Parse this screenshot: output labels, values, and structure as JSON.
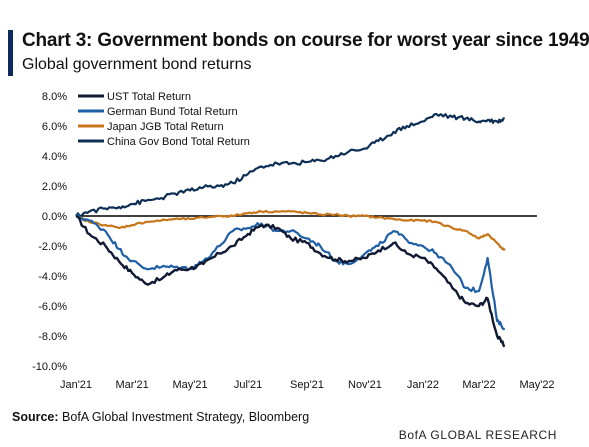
{
  "header": {
    "title": "Chart 3: Government bonds on course for worst year since 1949",
    "subtitle": "Global government bond returns"
  },
  "footer": {
    "source_label": "Source:",
    "source_text": "BofA Global Investment Strategy, Bloomberg",
    "credit": "BofA GLOBAL RESEARCH"
  },
  "colors": {
    "ust": "#111a33",
    "bund": "#1f5fa6",
    "jgb": "#c8761a",
    "china": "#0e2f55",
    "zero_line": "#000000",
    "axis_text": "#111111"
  },
  "chart_data": {
    "type": "line",
    "title": "",
    "xlabel": "",
    "ylabel": "",
    "x_ticks": [
      "Jan'21",
      "Mar'21",
      "May'21",
      "Jul'21",
      "Sep'21",
      "Nov'21",
      "Jan'22",
      "Mar'22",
      "May'22"
    ],
    "y_ticks": [
      "8.0%",
      "6.0%",
      "4.0%",
      "2.0%",
      "0.0%",
      "-2.0%",
      "-4.0%",
      "-6.0%",
      "-8.0%",
      "-10.0%"
    ],
    "ylim": [
      -10,
      8
    ],
    "xlim": [
      "2021-01-01",
      "2022-05-01"
    ],
    "legend_position": "top-left",
    "x": [
      "2021-01-01",
      "2021-01-15",
      "2021-02-01",
      "2021-02-15",
      "2021-03-01",
      "2021-03-15",
      "2021-04-01",
      "2021-04-15",
      "2021-05-01",
      "2021-05-15",
      "2021-06-01",
      "2021-06-15",
      "2021-07-01",
      "2021-07-15",
      "2021-08-01",
      "2021-08-15",
      "2021-09-01",
      "2021-09-15",
      "2021-10-01",
      "2021-10-15",
      "2021-11-01",
      "2021-11-15",
      "2021-12-01",
      "2021-12-15",
      "2022-01-01",
      "2022-01-15",
      "2022-02-01",
      "2022-02-15",
      "2022-03-01",
      "2022-03-10",
      "2022-03-20",
      "2022-03-28"
    ],
    "series": [
      {
        "name": "UST Total Return",
        "color_key": "ust",
        "values": [
          0.0,
          -1.2,
          -2.0,
          -3.0,
          -3.8,
          -4.5,
          -4.2,
          -3.6,
          -3.5,
          -3.2,
          -2.5,
          -2.0,
          -1.2,
          -0.6,
          -0.8,
          -1.5,
          -1.8,
          -2.5,
          -2.9,
          -3.0,
          -2.8,
          -2.3,
          -1.8,
          -2.5,
          -2.8,
          -3.5,
          -4.8,
          -5.8,
          -6.0,
          -5.5,
          -8.0,
          -8.7
        ]
      },
      {
        "name": "German Bund Total Return",
        "color_key": "bund",
        "values": [
          0.0,
          -0.3,
          -1.0,
          -2.2,
          -3.0,
          -3.5,
          -3.4,
          -3.4,
          -3.5,
          -3.0,
          -2.0,
          -1.0,
          -0.8,
          -0.5,
          -1.0,
          -1.0,
          -1.5,
          -2.0,
          -3.0,
          -3.2,
          -2.5,
          -2.0,
          -1.0,
          -1.6,
          -2.0,
          -2.5,
          -3.5,
          -4.8,
          -5.0,
          -2.8,
          -7.0,
          -7.5
        ]
      },
      {
        "name": "Japan JGB Total Return",
        "color_key": "jgb",
        "values": [
          0.0,
          -0.4,
          -0.6,
          -0.8,
          -0.6,
          -0.4,
          -0.3,
          -0.2,
          -0.2,
          -0.1,
          0.0,
          0.0,
          0.2,
          0.3,
          0.3,
          0.3,
          0.2,
          0.1,
          0.1,
          0.0,
          0.0,
          -0.1,
          -0.2,
          -0.3,
          -0.3,
          -0.4,
          -0.8,
          -1.0,
          -1.5,
          -1.2,
          -1.8,
          -2.3
        ]
      },
      {
        "name": "China Gov Bond Total Return",
        "color_key": "china",
        "values": [
          0.0,
          0.3,
          0.5,
          0.6,
          0.8,
          1.0,
          1.2,
          1.5,
          1.7,
          1.9,
          2.0,
          2.2,
          2.8,
          3.3,
          3.5,
          3.5,
          3.6,
          3.7,
          4.0,
          4.3,
          4.5,
          5.0,
          5.6,
          6.0,
          6.3,
          6.8,
          6.6,
          6.5,
          6.3,
          6.4,
          6.3,
          6.5
        ]
      }
    ]
  }
}
